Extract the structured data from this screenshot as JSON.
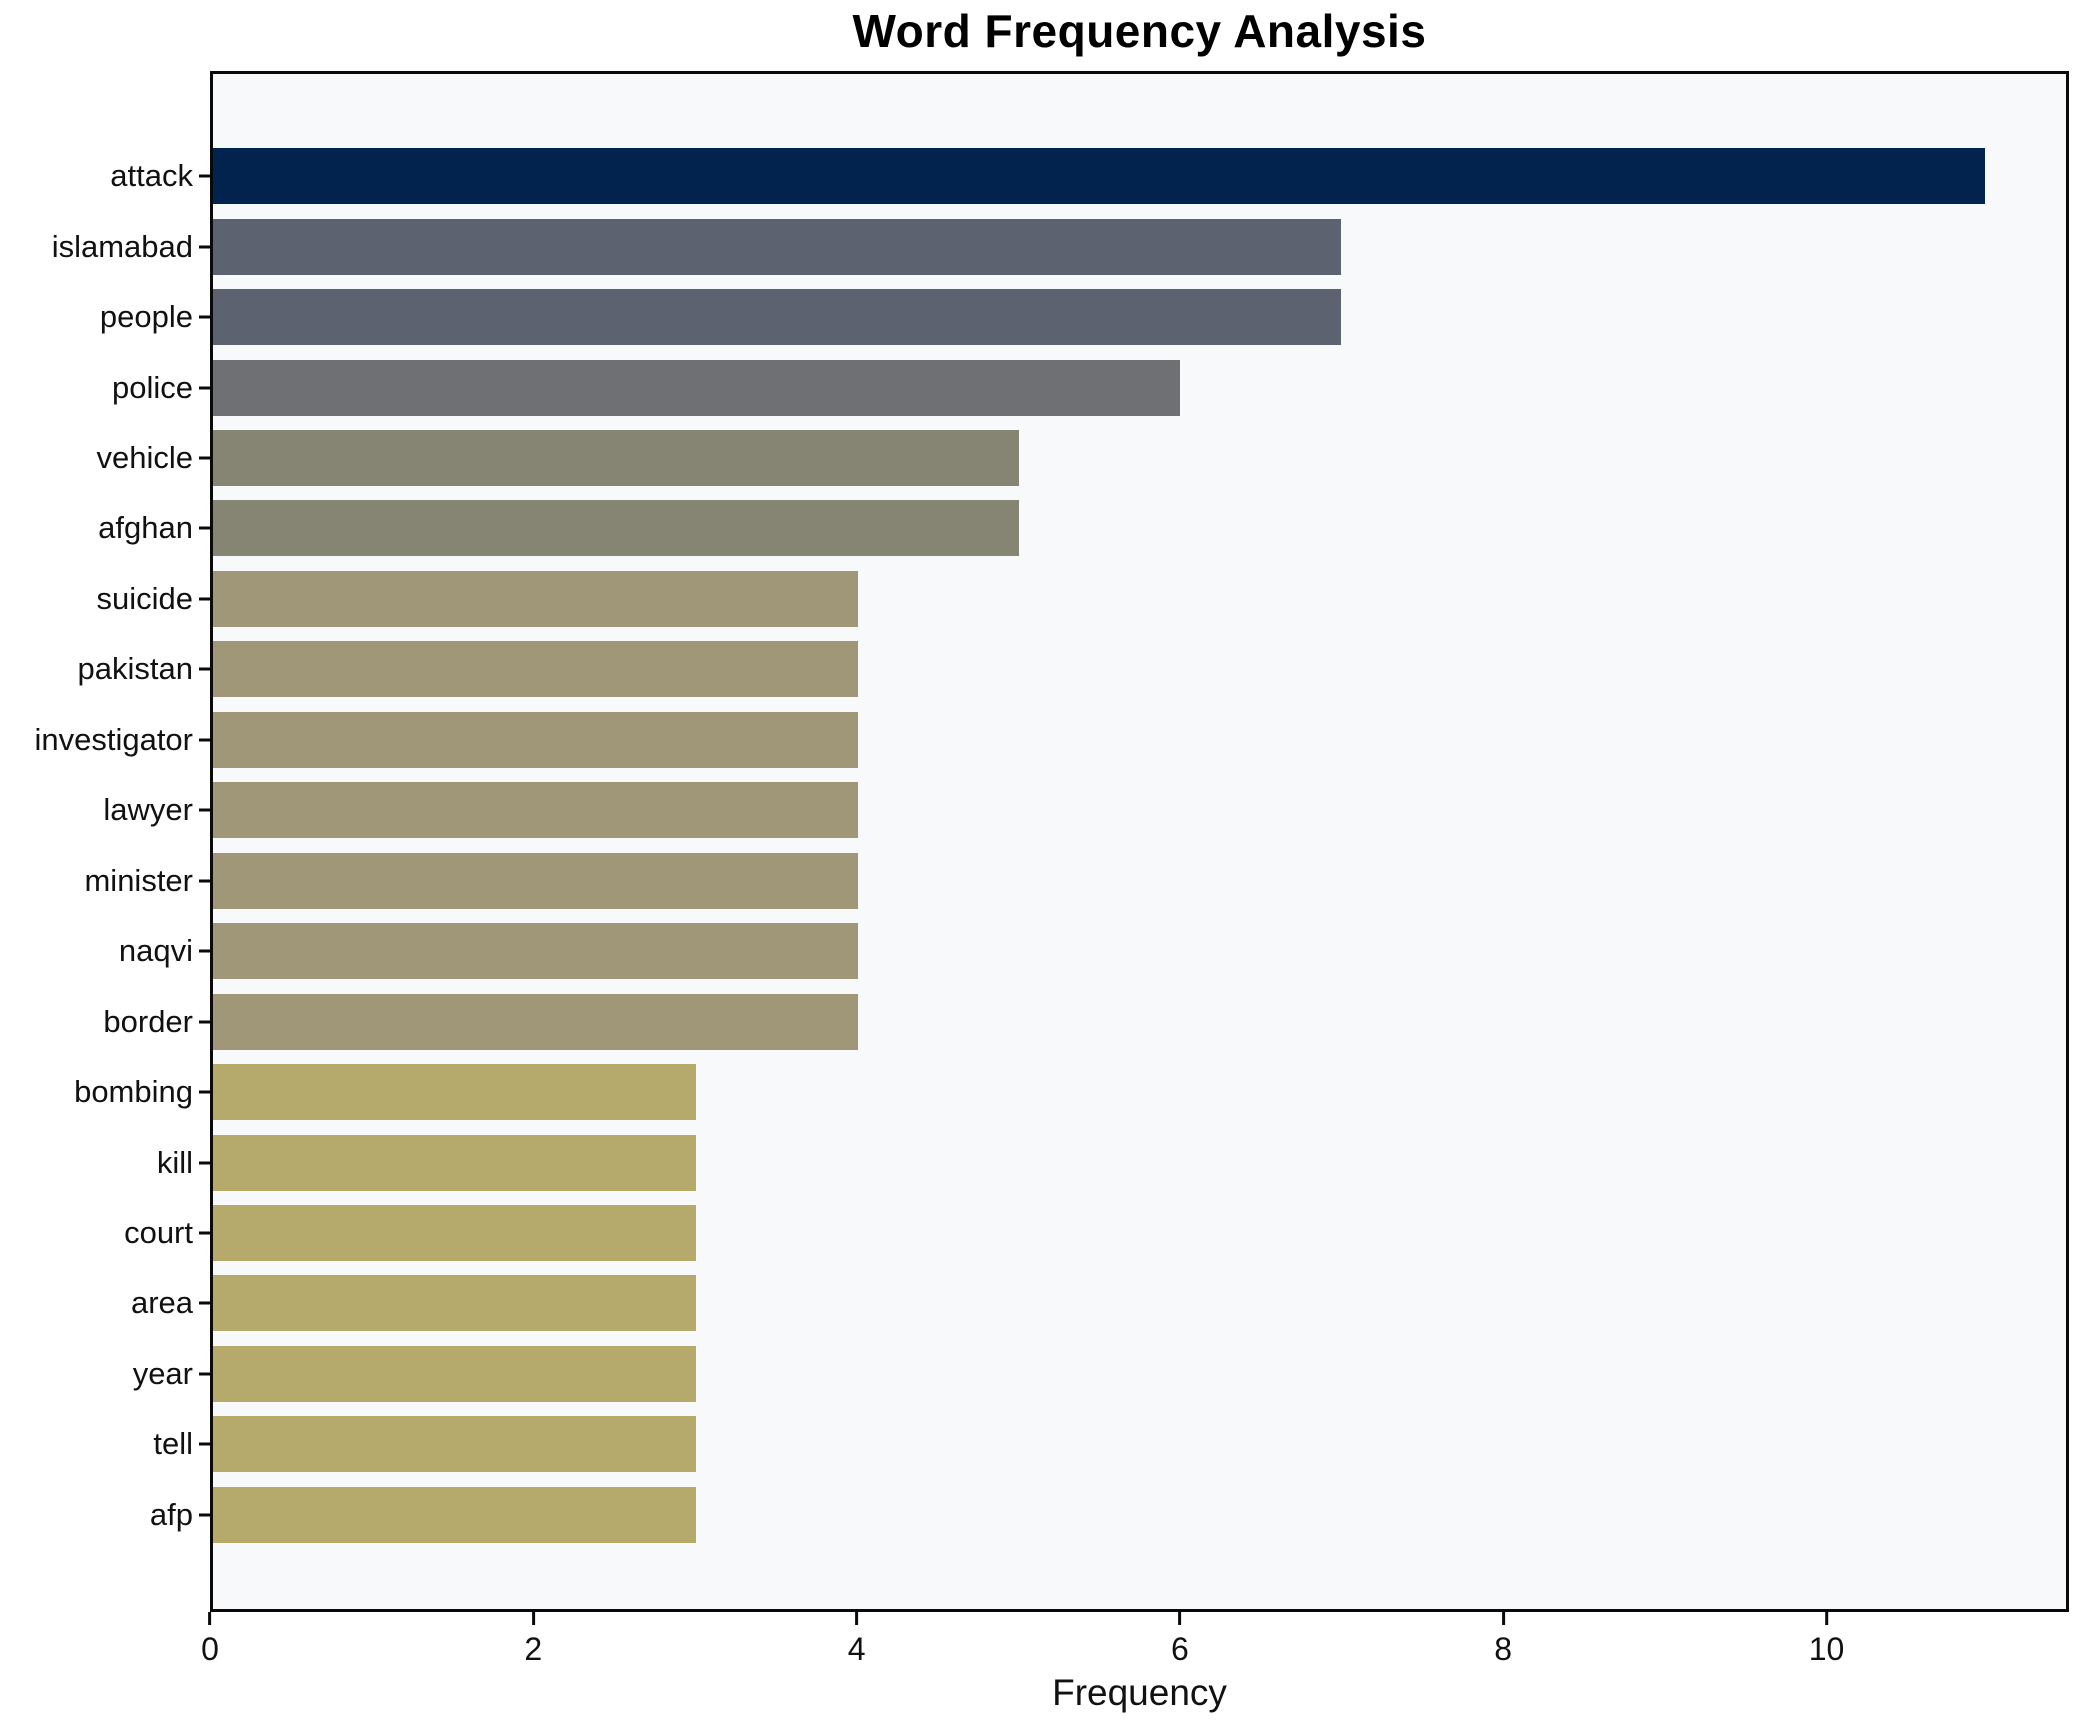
{
  "chart_data": {
    "type": "bar",
    "orientation": "horizontal",
    "title": "Word Frequency Analysis",
    "xlabel": "Frequency",
    "ylabel": "",
    "categories": [
      "attack",
      "islamabad",
      "people",
      "police",
      "vehicle",
      "afghan",
      "suicide",
      "pakistan",
      "investigator",
      "lawyer",
      "minister",
      "naqvi",
      "border",
      "bombing",
      "kill",
      "court",
      "area",
      "year",
      "tell",
      "afp"
    ],
    "values": [
      11,
      7,
      7,
      6,
      5,
      5,
      4,
      4,
      4,
      4,
      4,
      4,
      4,
      3,
      3,
      3,
      3,
      3,
      3,
      3
    ],
    "bar_colors": [
      "#02234e",
      "#5c6270",
      "#5c6270",
      "#6f7073",
      "#868473",
      "#868473",
      "#9f9778",
      "#9f9778",
      "#9f9778",
      "#9f9778",
      "#9f9778",
      "#9f9778",
      "#9f9778",
      "#b5aa6c",
      "#b5aa6c",
      "#b5aa6c",
      "#b5aa6c",
      "#b5aa6c",
      "#b5aa6c",
      "#b5aa6c"
    ],
    "x_ticks": [
      0,
      2,
      4,
      6,
      8,
      10
    ],
    "xlim": [
      0,
      11.5
    ],
    "grid": false,
    "legend_position": "none",
    "plot_background": "#f8f9fa",
    "figure_background": "#ffffff",
    "frame_color": "#0a0a0a"
  }
}
